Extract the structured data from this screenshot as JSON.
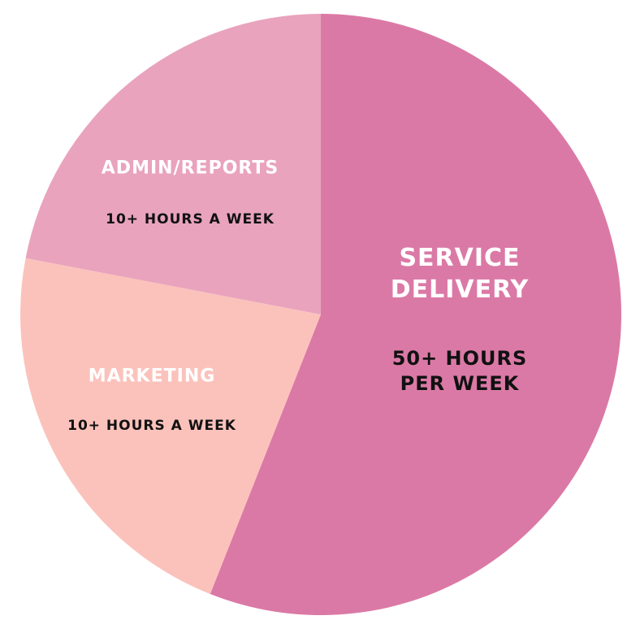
{
  "chart_data": {
    "type": "pie",
    "categories": [
      "SERVICE DELIVERY",
      "MARKETING",
      "ADMIN/REPORTS"
    ],
    "details": [
      "50+ HOURS PER WEEK",
      "10+ HOURS A WEEK",
      "10+ HOURS A WEEK"
    ],
    "values": [
      56,
      22,
      22
    ],
    "colors": [
      "#db79a6",
      "#fbc2bc",
      "#e9a3bd"
    ]
  }
}
